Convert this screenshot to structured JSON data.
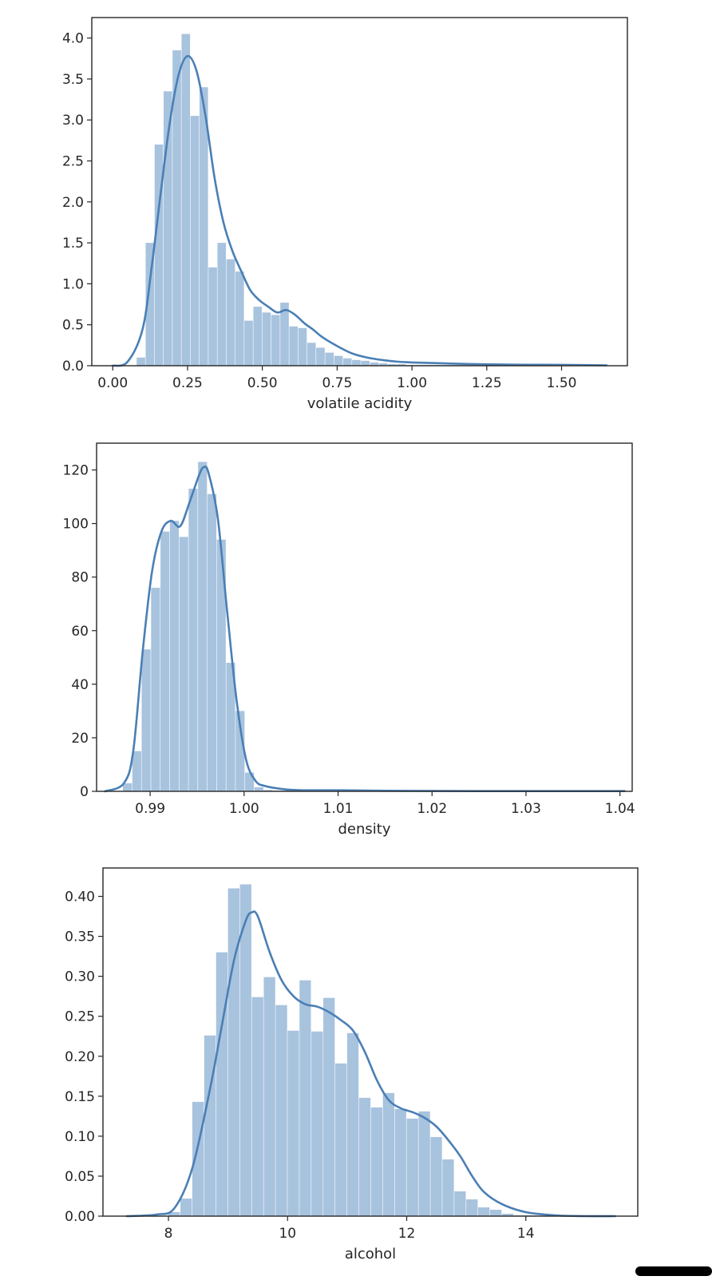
{
  "colors": {
    "bar": "#a8c3de",
    "kde": "#4a7fb5",
    "axis": "#262626"
  },
  "chart_data": [
    {
      "type": "bar",
      "subtype": "histogram-with-kde",
      "title": "",
      "xlabel": "volatile acidity",
      "ylabel": "",
      "xlim": [
        -0.07,
        1.72
      ],
      "ylim": [
        0,
        4.25
      ],
      "xticks": [
        "0.00",
        "0.25",
        "0.50",
        "0.75",
        "1.00",
        "1.25",
        "1.50"
      ],
      "yticks": [
        "0.0",
        "0.5",
        "1.0",
        "1.5",
        "2.0",
        "2.5",
        "3.0",
        "3.5",
        "4.0"
      ],
      "grid": false,
      "bin_edges": [
        0.08,
        0.11,
        0.14,
        0.17,
        0.2,
        0.23,
        0.26,
        0.29,
        0.32,
        0.35,
        0.38,
        0.41,
        0.44,
        0.47,
        0.5,
        0.53,
        0.56,
        0.59,
        0.62,
        0.65,
        0.68,
        0.71,
        0.74,
        0.77,
        0.8,
        0.83,
        0.86,
        0.89,
        0.92,
        0.95,
        0.98,
        1.01,
        1.04,
        1.07,
        1.1,
        1.13,
        1.16,
        1.19,
        1.22,
        1.25,
        1.28,
        1.31,
        1.34,
        1.37,
        1.4,
        1.43,
        1.46,
        1.49,
        1.52,
        1.55,
        1.58
      ],
      "values": [
        0.1,
        1.5,
        2.7,
        3.35,
        3.85,
        4.05,
        3.05,
        3.4,
        1.2,
        1.5,
        1.3,
        1.15,
        0.55,
        0.72,
        0.65,
        0.62,
        0.77,
        0.48,
        0.46,
        0.28,
        0.22,
        0.16,
        0.12,
        0.09,
        0.07,
        0.06,
        0.04,
        0.03,
        0.02,
        0.02,
        0.01,
        0.01,
        0.01,
        0.01,
        0.01,
        0.01,
        0.01,
        0.01,
        0.005,
        0.005,
        0.005,
        0.005,
        0.005,
        0.005,
        0.005,
        0.005,
        0.005,
        0.005,
        0.005,
        0.005
      ],
      "kde": {
        "x": [
          0.0,
          0.05,
          0.1,
          0.13,
          0.16,
          0.19,
          0.22,
          0.25,
          0.28,
          0.31,
          0.34,
          0.37,
          0.4,
          0.43,
          0.46,
          0.49,
          0.52,
          0.55,
          0.58,
          0.61,
          0.64,
          0.67,
          0.7,
          0.75,
          0.8,
          0.85,
          0.9,
          0.95,
          1.0,
          1.1,
          1.2,
          1.3,
          1.4,
          1.5,
          1.65
        ],
        "y": [
          0.0,
          0.05,
          0.45,
          1.2,
          2.1,
          2.95,
          3.55,
          3.78,
          3.6,
          3.05,
          2.3,
          1.75,
          1.4,
          1.15,
          0.92,
          0.8,
          0.72,
          0.65,
          0.68,
          0.62,
          0.52,
          0.44,
          0.35,
          0.24,
          0.15,
          0.1,
          0.07,
          0.05,
          0.04,
          0.03,
          0.02,
          0.015,
          0.012,
          0.01,
          0.005
        ]
      }
    },
    {
      "type": "bar",
      "subtype": "histogram-with-kde",
      "title": "",
      "xlabel": "density",
      "ylabel": "",
      "xlim": [
        0.9843,
        1.0413
      ],
      "ylim": [
        0,
        130
      ],
      "xticks": [
        "0.99",
        "1.00",
        "1.01",
        "1.02",
        "1.03",
        "1.04"
      ],
      "yticks": [
        "0",
        "20",
        "40",
        "60",
        "80",
        "100",
        "120"
      ],
      "grid": false,
      "bin_edges": [
        0.9871,
        0.9881,
        0.9891,
        0.9901,
        0.9911,
        0.9921,
        0.9931,
        0.9941,
        0.9951,
        0.9961,
        0.9971,
        0.9981,
        0.9991,
        1.0001,
        1.0011,
        1.0021,
        1.0031,
        1.0041,
        1.0051,
        1.0061,
        1.0071,
        1.0081,
        1.0091,
        1.0101,
        1.0111,
        1.0121,
        1.0131,
        1.0141,
        1.0151,
        1.0161,
        1.0171,
        1.0181,
        1.0191,
        1.0201,
        1.0211,
        1.0221,
        1.0231,
        1.0241,
        1.0251,
        1.0261,
        1.0271,
        1.0281,
        1.0291,
        1.0301,
        1.0311,
        1.0321,
        1.0331,
        1.0341,
        1.0351,
        1.0361,
        1.0371,
        1.0381,
        1.0391,
        1.0401
      ],
      "values": [
        3,
        15,
        53,
        76,
        97,
        101,
        95,
        113,
        123,
        111,
        94,
        48,
        30,
        7,
        1.5,
        0.5,
        0.3,
        0.3,
        0.2,
        0.2,
        0.2,
        0.2,
        0.2,
        0.3,
        0.2,
        0.2,
        0.1,
        0.1,
        0.1,
        0.1,
        0.1,
        0.1,
        0.1,
        0.1,
        0.1,
        0.1,
        0.1,
        0.1,
        0.1,
        0.1,
        0.1,
        0.1,
        0.1,
        0.1,
        0.1,
        0.1,
        0.1,
        0.1,
        0.1,
        0.1,
        0.1,
        0.1,
        0.1
      ],
      "kde": {
        "x": [
          0.9852,
          0.9872,
          0.9882,
          0.9892,
          0.9902,
          0.9912,
          0.9922,
          0.9932,
          0.9942,
          0.9952,
          0.9957,
          0.9962,
          0.9972,
          0.9982,
          0.9992,
          1.0002,
          1.0012,
          1.0022,
          1.0042,
          1.0062,
          1.0102,
          1.015,
          1.025,
          1.035,
          1.0405
        ],
        "y": [
          0,
          3,
          15,
          52,
          82,
          97,
          101,
          99,
          108,
          118,
          121,
          119,
          102,
          67,
          34,
          12,
          4,
          2,
          0.8,
          0.4,
          0.4,
          0.2,
          0.1,
          0.1,
          0.1
        ]
      }
    },
    {
      "type": "bar",
      "subtype": "histogram-with-kde",
      "title": "",
      "xlabel": "alcohol",
      "ylabel": "",
      "xlim": [
        6.9,
        15.88
      ],
      "ylim": [
        0,
        0.4355
      ],
      "xticks": [
        "8",
        "10",
        "12",
        "14"
      ],
      "yticks": [
        "0.00",
        "0.05",
        "0.10",
        "0.15",
        "0.20",
        "0.25",
        "0.30",
        "0.35",
        "0.40"
      ],
      "grid": false,
      "bin_edges": [
        8.0,
        8.2,
        8.4,
        8.6,
        8.8,
        9.0,
        9.2,
        9.4,
        9.6,
        9.8,
        10.0,
        10.2,
        10.4,
        10.6,
        10.8,
        11.0,
        11.2,
        11.4,
        11.6,
        11.8,
        12.0,
        12.2,
        12.4,
        12.6,
        12.8,
        13.0,
        13.2,
        13.4,
        13.6,
        13.8,
        14.0,
        14.2
      ],
      "values": [
        0.005,
        0.022,
        0.143,
        0.226,
        0.33,
        0.41,
        0.415,
        0.274,
        0.299,
        0.264,
        0.232,
        0.295,
        0.231,
        0.273,
        0.191,
        0.229,
        0.148,
        0.136,
        0.154,
        0.134,
        0.122,
        0.131,
        0.099,
        0.071,
        0.031,
        0.021,
        0.011,
        0.008,
        0.003,
        0.001,
        0.001
      ],
      "kde": {
        "x": [
          7.3,
          7.8,
          8.1,
          8.4,
          8.7,
          8.9,
          9.1,
          9.3,
          9.4,
          9.5,
          9.7,
          9.9,
          10.1,
          10.3,
          10.5,
          10.7,
          10.9,
          11.1,
          11.3,
          11.5,
          11.7,
          11.9,
          12.1,
          12.3,
          12.5,
          12.7,
          12.9,
          13.1,
          13.3,
          13.6,
          14.0,
          14.5,
          15.0,
          15.5
        ],
        "y": [
          0.0,
          0.002,
          0.01,
          0.06,
          0.16,
          0.24,
          0.32,
          0.37,
          0.38,
          0.375,
          0.33,
          0.295,
          0.275,
          0.265,
          0.262,
          0.255,
          0.245,
          0.232,
          0.205,
          0.17,
          0.145,
          0.135,
          0.13,
          0.123,
          0.112,
          0.095,
          0.075,
          0.05,
          0.03,
          0.015,
          0.005,
          0.001,
          0.0,
          0.0
        ]
      }
    }
  ]
}
